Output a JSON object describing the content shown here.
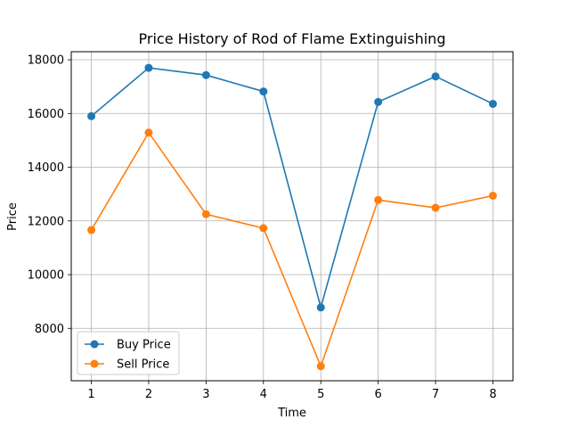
{
  "chart_data": {
    "type": "line",
    "title": "Price History of Rod of Flame Extinguishing",
    "xlabel": "Time",
    "ylabel": "Price",
    "x": [
      1,
      2,
      3,
      4,
      5,
      6,
      7,
      8
    ],
    "xticks": [
      1,
      2,
      3,
      4,
      5,
      6,
      7,
      8
    ],
    "yticks": [
      8000,
      10000,
      12000,
      14000,
      16000,
      18000
    ],
    "xlim": [
      0.65,
      8.35
    ],
    "ylim": [
      6050,
      18300
    ],
    "grid": true,
    "legend_position": "lower-left",
    "series": [
      {
        "name": "Buy Price",
        "color": "#1f77b4",
        "values": [
          15900,
          17700,
          17430,
          16820,
          8780,
          16430,
          17380,
          16360
        ]
      },
      {
        "name": "Sell Price",
        "color": "#ff7f0e",
        "values": [
          11660,
          15290,
          12250,
          11730,
          6590,
          12780,
          12490,
          12940
        ]
      }
    ]
  }
}
